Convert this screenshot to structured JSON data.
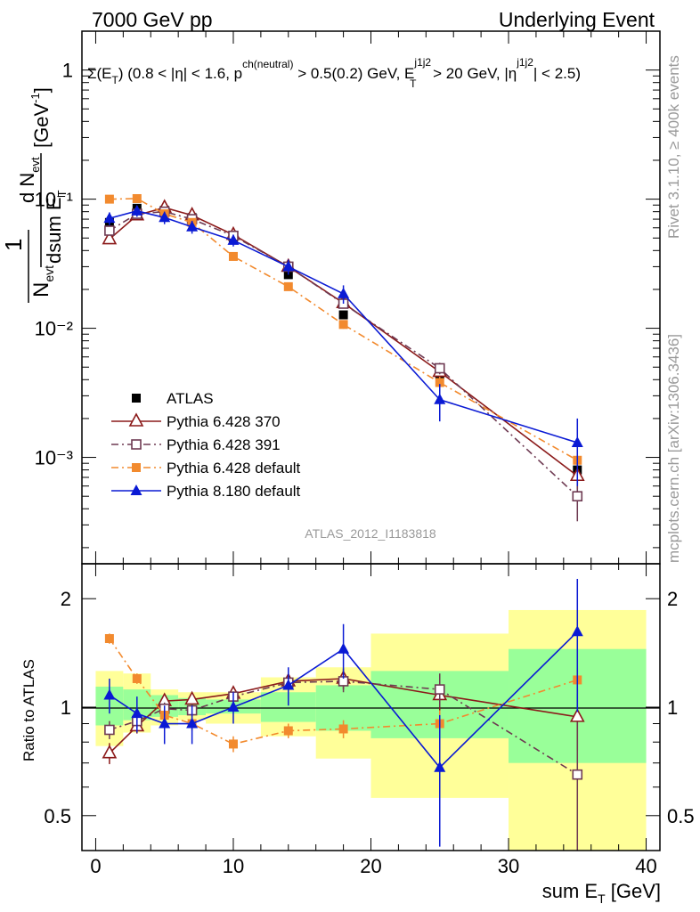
{
  "header": {
    "left": "7000 GeV pp",
    "right": "Underlying Event"
  },
  "side_text": {
    "rivet": "Rivet 3.1.10, ≥ 400k events",
    "mcplots": "mcplots.cern.ch [arXiv:1306.3436]"
  },
  "analysis_label": "ATLAS_2012_I1183818",
  "colors": {
    "data": "#000000",
    "p370": "#8b1a1a",
    "p391": "#6e3a52",
    "p6default": "#f28a2e",
    "p8default": "#0a1ad4",
    "band_inner": "#99ff99",
    "band_outer": "#ffff99",
    "annotation_gray": "#999999"
  },
  "chart_data": [
    {
      "type": "line",
      "panel": "main",
      "title": "Σ(E_T) (0.8 < |η| < 1.6, p^ch(neutral) > 0.5(0.2) GeV, E_T^j1j2 > 20 GeV, |η^j1j2| < 2.5)",
      "title_parts": {
        "prefix": "Σ(E",
        "sub_T": "T",
        "mid1": ") (0.8 < |η| < 1.6, p",
        "sup_ch": "ch(neutral)",
        "mid2": " > 0.5(0.2) GeV, E",
        "sup_j": "j1j2",
        "sub_T2": "T",
        "mid3": " > 20 GeV, |η",
        "sup_j2": "j1j2",
        "end": "| < 2.5)"
      },
      "ylabel": "1/N_evt dN_evt/dsum E_T [GeV^-1]",
      "ylabel_parts": {
        "one": "1",
        "N": "N",
        "N_sub": "evt",
        "dN": "d N",
        "dN_sub": "evt",
        "dsum": "dsum E",
        "dsum_sub": "T",
        "unit": "[GeV",
        "unit_sup": "-1",
        "unit_end": "]"
      },
      "yscale": "log",
      "ylim": [
        0.00015,
        2.0
      ],
      "xlim": [
        -1,
        41
      ],
      "y_tick_labels": [
        "1",
        "10⁻¹",
        "10⁻²",
        "10⁻³"
      ],
      "y_tick_values": [
        1,
        0.1,
        0.01,
        0.001
      ],
      "x_tick_values": [
        0,
        10,
        20,
        30,
        40
      ],
      "legend_position": "lower-left",
      "data": {
        "name": "ATLAS",
        "x": [
          1,
          3,
          5,
          7,
          10,
          14,
          18,
          25,
          35
        ],
        "y": [
          0.066,
          0.085,
          0.082,
          0.072,
          0.049,
          0.026,
          0.0127,
          0.0044,
          0.0008
        ],
        "yerr": [
          0.004,
          0.004,
          0.004,
          0.003,
          0.002,
          0.0015,
          0.0008,
          0.0004,
          0.0001
        ]
      },
      "series": [
        {
          "name": "Pythia 6.428 370",
          "style": "solid",
          "marker": "open-triangle",
          "color_key": "p370",
          "x": [
            1,
            3,
            5,
            7,
            10,
            14,
            18,
            25,
            35
          ],
          "y": [
            0.049,
            0.075,
            0.086,
            0.075,
            0.053,
            0.03,
            0.0157,
            0.0046,
            0.00072
          ],
          "yerr": [
            0.003,
            0.003,
            0.003,
            0.003,
            0.002,
            0.0015,
            0.001,
            0.0005,
            0.00015
          ]
        },
        {
          "name": "Pythia 6.428 391",
          "style": "dashdot",
          "marker": "open-square",
          "color_key": "p391",
          "x": [
            1,
            3,
            5,
            7,
            10,
            14,
            18,
            25,
            35
          ],
          "y": [
            0.057,
            0.077,
            0.08,
            0.07,
            0.052,
            0.03,
            0.0155,
            0.0049,
            0.0005
          ],
          "yerr": [
            0.003,
            0.003,
            0.003,
            0.003,
            0.002,
            0.0015,
            0.001,
            0.0005,
            0.00018
          ]
        },
        {
          "name": "Pythia 6.428 default",
          "style": "dashdot",
          "marker": "filled-square",
          "color_key": "p6default",
          "x": [
            1,
            3,
            5,
            7,
            10,
            14,
            18,
            25,
            35
          ],
          "y": [
            0.1,
            0.101,
            0.077,
            0.066,
            0.036,
            0.021,
            0.0107,
            0.0038,
            0.00095
          ],
          "yerr": [
            0.003,
            0.003,
            0.003,
            0.003,
            0.002,
            0.0012,
            0.0008,
            0.0004,
            0.0001
          ]
        },
        {
          "name": "Pythia 8.180 default",
          "style": "solid",
          "marker": "filled-triangle",
          "color_key": "p8default",
          "x": [
            1,
            3,
            5,
            7,
            10,
            14,
            18,
            25,
            35
          ],
          "y": [
            0.071,
            0.081,
            0.072,
            0.061,
            0.048,
            0.03,
            0.0185,
            0.0028,
            0.0013
          ],
          "yerr": [
            0.008,
            0.008,
            0.008,
            0.007,
            0.005,
            0.004,
            0.003,
            0.0009,
            0.0007
          ]
        }
      ]
    },
    {
      "type": "line",
      "panel": "ratio",
      "ylabel": "Ratio to ATLAS",
      "xlabel": "sum E_T [GeV]",
      "xlabel_parts": {
        "main": "sum E",
        "sub": "T",
        "unit": " [GeV]"
      },
      "yscale": "log",
      "ylim": [
        0.4,
        2.5
      ],
      "xlim": [
        -1,
        41
      ],
      "y_tick_labels": [
        "0.5",
        "1",
        "2"
      ],
      "y_tick_values": [
        0.5,
        1,
        2
      ],
      "x_tick_labels": [
        "0",
        "10",
        "20",
        "30",
        "40"
      ],
      "x_tick_values": [
        0,
        10,
        20,
        30,
        40
      ],
      "bands": [
        {
          "x0": 0,
          "x1": 2,
          "inner": [
            0.89,
            1.14
          ],
          "outer": [
            0.78,
            1.26
          ]
        },
        {
          "x0": 2,
          "x1": 4,
          "inner": [
            0.92,
            1.12
          ],
          "outer": [
            0.85,
            1.24
          ]
        },
        {
          "x0": 4,
          "x1": 6,
          "inner": [
            0.94,
            1.08
          ],
          "outer": [
            0.89,
            1.12
          ]
        },
        {
          "x0": 6,
          "x1": 8,
          "inner": [
            0.95,
            1.06
          ],
          "outer": [
            0.92,
            1.1
          ]
        },
        {
          "x0": 8,
          "x1": 12,
          "inner": [
            0.96,
            1.05
          ],
          "outer": [
            0.9,
            1.1
          ]
        },
        {
          "x0": 12,
          "x1": 16,
          "inner": [
            0.91,
            1.1
          ],
          "outer": [
            0.83,
            1.21
          ]
        },
        {
          "x0": 16,
          "x1": 20,
          "inner": [
            0.86,
            1.15
          ],
          "outer": [
            0.72,
            1.29
          ]
        },
        {
          "x0": 20,
          "x1": 30,
          "inner": [
            0.82,
            1.26
          ],
          "outer": [
            0.56,
            1.6
          ]
        },
        {
          "x0": 30,
          "x1": 40,
          "inner": [
            0.7,
            1.45
          ],
          "outer": [
            0.4,
            1.86
          ]
        }
      ],
      "data": {
        "name": "ATLAS",
        "x": [
          1,
          3,
          5,
          7,
          10,
          14,
          18,
          25,
          35
        ],
        "y": [
          1,
          1,
          1,
          1,
          1,
          1,
          1,
          1,
          1
        ]
      },
      "series": [
        {
          "name": "Pythia 6.428 370",
          "style": "solid",
          "marker": "open-triangle",
          "color_key": "p370",
          "x": [
            1,
            3,
            5,
            7,
            10,
            14,
            18,
            25,
            35
          ],
          "y": [
            0.745,
            0.885,
            1.04,
            1.05,
            1.09,
            1.18,
            1.2,
            1.08,
            0.94
          ],
          "yerr": [
            0.05,
            0.04,
            0.04,
            0.04,
            0.03,
            0.05,
            0.08,
            0.1,
            0.18
          ]
        },
        {
          "name": "Pythia 6.428 391",
          "style": "dashdot",
          "marker": "open-square",
          "color_key": "p391",
          "x": [
            1,
            3,
            5,
            7,
            10,
            14,
            18,
            25,
            35
          ],
          "y": [
            0.865,
            0.915,
            0.99,
            0.98,
            1.07,
            1.17,
            1.18,
            1.12,
            0.65
          ],
          "yerr": [
            0.05,
            0.04,
            0.04,
            0.04,
            0.03,
            0.05,
            0.08,
            0.12,
            0.26
          ]
        },
        {
          "name": "Pythia 6.428 default",
          "style": "dashdot",
          "marker": "filled-square",
          "color_key": "p6default",
          "x": [
            1,
            3,
            5,
            7,
            10,
            14,
            18,
            25,
            35
          ],
          "y": [
            1.55,
            1.2,
            0.95,
            0.9,
            0.79,
            0.86,
            0.87,
            0.9,
            1.19
          ],
          "yerr": [
            0.05,
            0.04,
            0.04,
            0.04,
            0.04,
            0.04,
            0.05,
            0.08,
            0.1
          ]
        },
        {
          "name": "Pythia 8.180 default",
          "style": "solid",
          "marker": "filled-triangle",
          "color_key": "p8default",
          "x": [
            1,
            3,
            5,
            7,
            10,
            14,
            18,
            25,
            35
          ],
          "y": [
            1.08,
            0.96,
            0.9,
            0.9,
            1.0,
            1.15,
            1.45,
            0.68,
            1.62
          ],
          "yerr": [
            0.12,
            0.11,
            0.11,
            0.11,
            0.1,
            0.14,
            0.25,
            0.27,
            0.65
          ]
        }
      ]
    }
  ]
}
